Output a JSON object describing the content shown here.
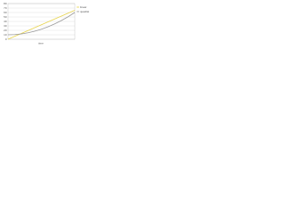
{
  "chart_data": {
    "type": "line",
    "xlabel": "time",
    "x": [
      0,
      1,
      2,
      3,
      4,
      5,
      6,
      7,
      8,
      9,
      10
    ],
    "series": [
      {
        "name": "linear",
        "color": "#e8d44d",
        "values": [
          0,
          6.5,
          13,
          19.5,
          26,
          32.5,
          39,
          45.5,
          52,
          58.5,
          65
        ]
      },
      {
        "name": "quadratic",
        "color": "#9a9a9a",
        "values": [
          10,
          10.5,
          12,
          14.5,
          18,
          22.5,
          28,
          34.5,
          42,
          50.5,
          60
        ]
      }
    ],
    "xlim": [
      0,
      10
    ],
    "ylim": [
      0,
      80
    ],
    "yticks": [
      0,
      10,
      20,
      30,
      40,
      50,
      60,
      70,
      80
    ],
    "grid": true,
    "legend": "right"
  }
}
